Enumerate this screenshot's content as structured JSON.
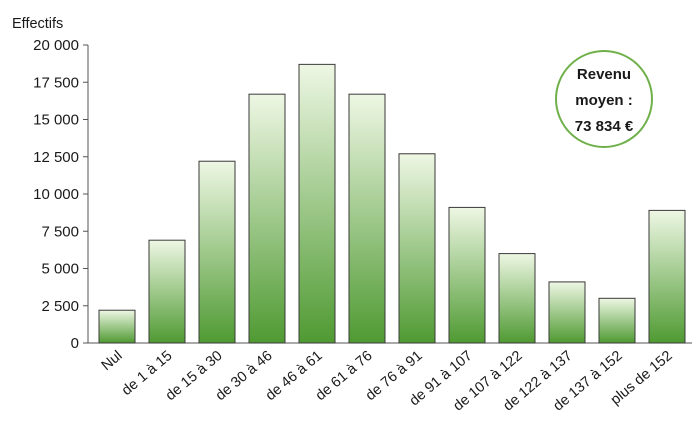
{
  "chart_data": {
    "type": "bar",
    "ylabel": "Effectifs",
    "ylim": [
      0,
      20000
    ],
    "yticks": [
      0,
      2500,
      5000,
      7500,
      10000,
      12500,
      15000,
      17500,
      20000
    ],
    "ytick_labels": [
      "0",
      "2 500",
      "5 000",
      "7 500",
      "10 000",
      "12 500",
      "15 000",
      "17 500",
      "20 000"
    ],
    "categories": [
      "Nul",
      "de 1 à 15",
      "de 15 à 30",
      "de 30 à 46",
      "de 46 à 61",
      "de 61 à 76",
      "de 76 à 91",
      "de 91 à 107",
      "de 107 à 122",
      "de 122 à 137",
      "de 137 à 152",
      "plus de 152"
    ],
    "values": [
      2200,
      6900,
      12200,
      16700,
      18700,
      16700,
      12700,
      9100,
      6000,
      4100,
      3000,
      8900
    ],
    "grid": false,
    "annotation": {
      "lines": [
        "Revenu",
        "moyen :",
        "73 834 €"
      ]
    },
    "colors": {
      "bar_top": "#eef7e4",
      "bar_bottom": "#4f9a32",
      "bar_stroke": "#3a3a3a",
      "annotation_ring": "#6fb04a"
    }
  }
}
